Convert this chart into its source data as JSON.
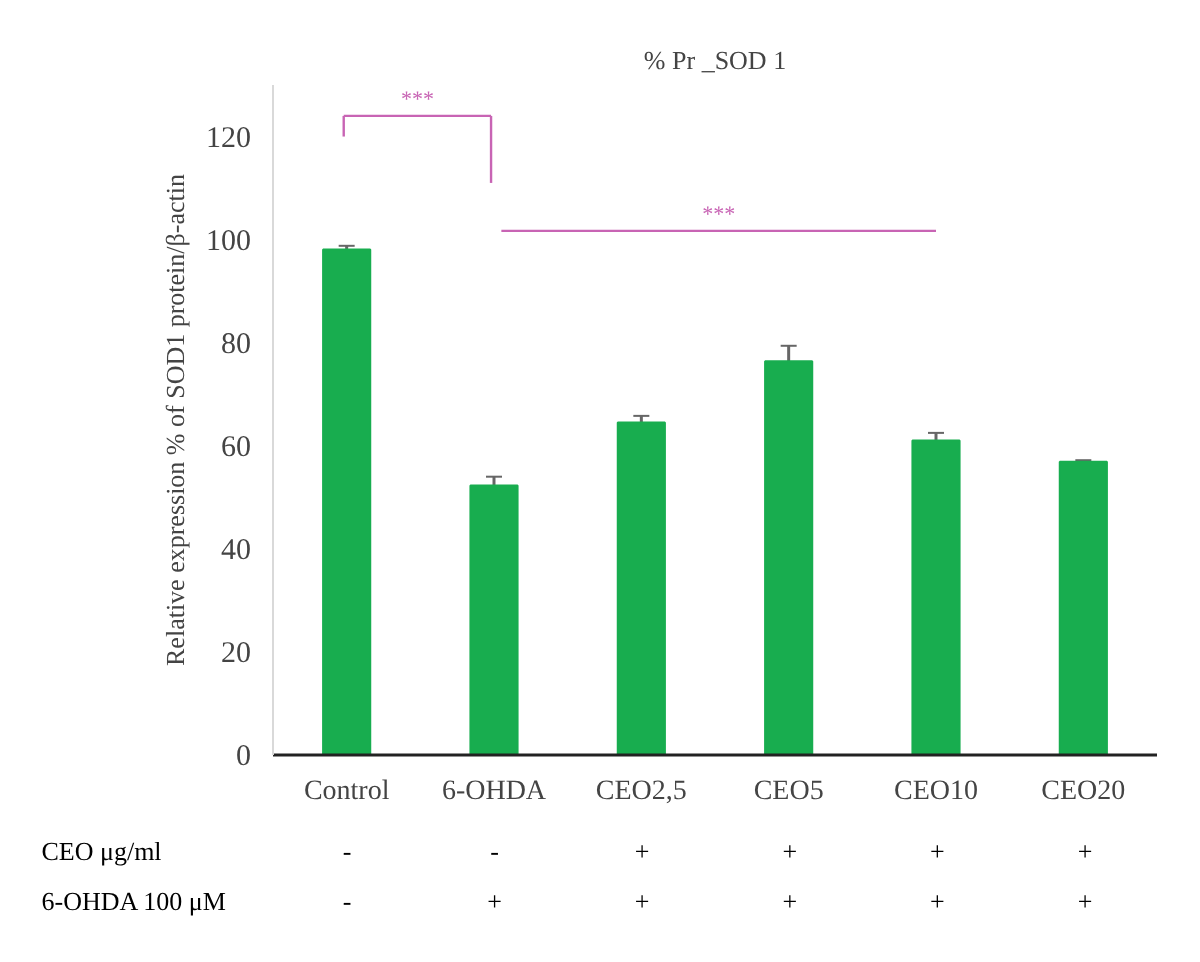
{
  "chart_data": {
    "type": "bar",
    "title": "% Pr _SOD 1",
    "ylabel": "Relative expression % of SOD1 protein/β-actin",
    "categories": [
      "Control",
      "6-OHDA",
      "CEO2,5",
      "CEO5",
      "CEO10",
      "CEO20"
    ],
    "values": [
      98.1,
      52.3,
      64.5,
      76.4,
      61.0,
      56.9
    ],
    "errors": [
      0.7,
      1.7,
      1.3,
      3,
      1.5,
      0.3
    ],
    "color": "#18ad4f",
    "ylim": [
      0,
      130
    ],
    "yticks": [
      0,
      20,
      40,
      60,
      80,
      100,
      120
    ],
    "grid": false,
    "annotations": [
      "***",
      "***",
      "CEO μg/ml",
      "-",
      "-",
      "+",
      "+",
      "+",
      "+",
      "6-OHDA 100 μM",
      "-",
      "+",
      "+",
      "+",
      "+",
      "+"
    ]
  }
}
